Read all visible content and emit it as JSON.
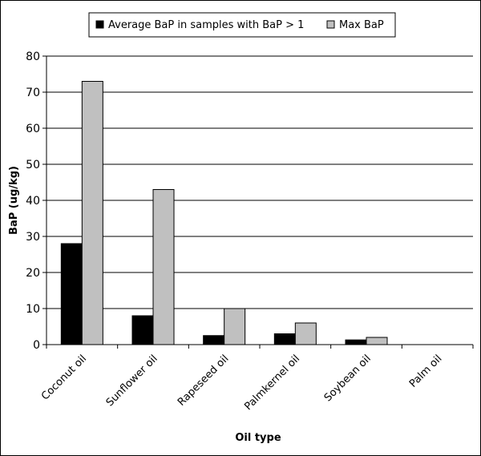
{
  "chart_data": {
    "type": "bar",
    "title": "",
    "xlabel": "Oil type",
    "ylabel": "BaP (ug/kg)",
    "ylim": [
      0,
      80
    ],
    "yticks": [
      0,
      10,
      20,
      30,
      40,
      50,
      60,
      70,
      80
    ],
    "grid": true,
    "legend_position": "top",
    "categories": [
      "Coconut oil",
      "Sunflower oil",
      "Rapeseed oil",
      "Palmkernel oil",
      "Soybean oil",
      "Palm oil"
    ],
    "series": [
      {
        "name": "Average BaP in samples with BaP > 1",
        "color": "#000000",
        "values": [
          28,
          8,
          2.5,
          3,
          1.3,
          0
        ]
      },
      {
        "name": "Max BaP",
        "color": "#c0c0c0",
        "values": [
          73,
          43,
          10,
          6,
          2,
          0
        ]
      }
    ]
  }
}
